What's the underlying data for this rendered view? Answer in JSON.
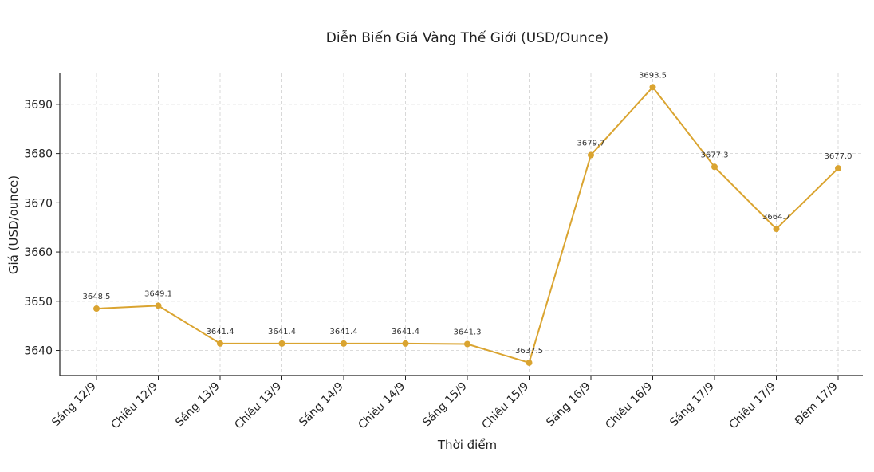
{
  "chart_data": {
    "type": "line",
    "title": "Diễn Biến Giá Vàng Thế Giới (USD/Ounce)",
    "xlabel": "Thời điểm",
    "ylabel": "Giá (USD/ounce)",
    "categories": [
      "Sáng 12/9",
      "Chiều 12/9",
      "Sáng 13/9",
      "Chiều 13/9",
      "Sáng 14/9",
      "Chiều 14/9",
      "Sáng 15/9",
      "Chiều 15/9",
      "Sáng 16/9",
      "Chiều 16/9",
      "Sáng 17/9",
      "Chiều 17/9",
      "Đêm 17/9"
    ],
    "series": [
      {
        "values": [
          3648.5,
          3649.1,
          3641.4,
          3641.4,
          3641.4,
          3641.4,
          3641.3,
          3637.5,
          3679.7,
          3693.5,
          3677.3,
          3664.7,
          3677.0
        ],
        "labels": [
          "3648.5",
          "3649.1",
          "3641.4",
          "3641.4",
          "3641.4",
          "3641.4",
          "3641.3",
          "3637.5",
          "3679.7",
          "3693.5",
          "3677.3",
          "3664.7",
          "3677.0"
        ],
        "color": "#DAA430"
      }
    ],
    "ylim": [
      3634.9,
      3696.3
    ],
    "yticks": [
      3640,
      3650,
      3660,
      3670,
      3680,
      3690
    ],
    "grid": true,
    "legend": "none"
  }
}
